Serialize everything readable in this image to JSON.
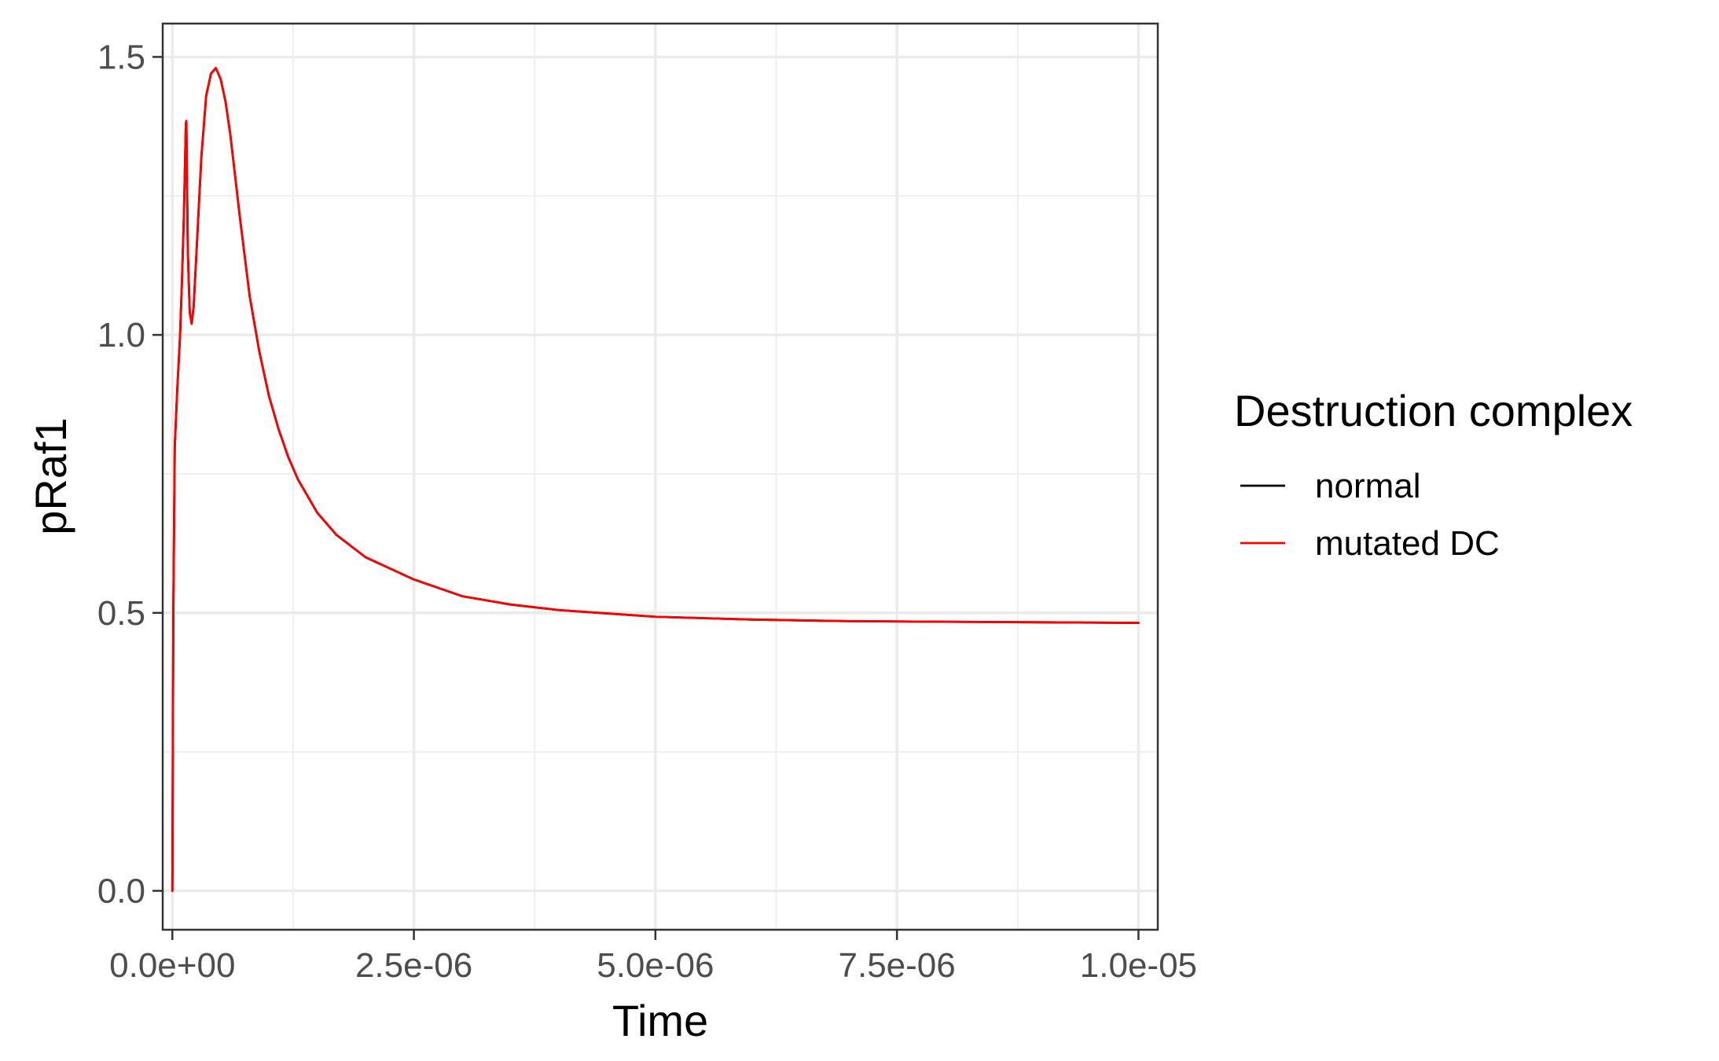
{
  "chart_data": {
    "type": "line",
    "title": "",
    "xlabel": "Time",
    "ylabel": "pRaf1",
    "xlim": [
      -1e-07,
      1.02e-05
    ],
    "ylim": [
      -0.07,
      1.56
    ],
    "x_ticks": [
      0,
      2.5e-06,
      5e-06,
      7.5e-06,
      1e-05
    ],
    "x_tick_labels": [
      "0.0e+00",
      "2.5e-06",
      "5.0e-06",
      "7.5e-06",
      "1.0e-05"
    ],
    "y_ticks": [
      0,
      0.5,
      1.0,
      1.5
    ],
    "y_tick_labels": [
      "0.0",
      "0.5",
      "1.0",
      "1.5"
    ],
    "grid": true,
    "legend": {
      "title": "Destruction complex",
      "position": "right",
      "entries": [
        {
          "label": "normal",
          "color": "#000000"
        },
        {
          "label": "mutated DC",
          "color": "#ff0000"
        }
      ]
    },
    "series": [
      {
        "name": "normal",
        "color": "#000000",
        "x": [
          0,
          1e-08,
          2.5e-08,
          5e-08,
          8e-08,
          1e-07,
          1.2e-07,
          1.4e-07,
          1.45e-07,
          1.5e-07,
          1.6e-07,
          1.8e-07,
          2e-07,
          2.2e-07,
          2.5e-07,
          3e-07,
          3.5e-07,
          4e-07,
          4.5e-07,
          5e-07,
          5.5e-07,
          6e-07,
          7e-07,
          8e-07,
          9e-07,
          1e-06,
          1.1e-06,
          1.2e-06,
          1.3e-06,
          1.5e-06,
          1.7e-06,
          2e-06,
          2.5e-06,
          3e-06,
          3.5e-06,
          4e-06,
          5e-06,
          6e-06,
          7e-06,
          8e-06,
          9e-06,
          1e-05
        ],
        "y": [
          0,
          0.5,
          0.8,
          0.9,
          1.0,
          1.1,
          1.22,
          1.38,
          1.385,
          1.3,
          1.15,
          1.04,
          1.02,
          1.05,
          1.15,
          1.32,
          1.43,
          1.47,
          1.48,
          1.46,
          1.42,
          1.36,
          1.21,
          1.07,
          0.97,
          0.89,
          0.83,
          0.78,
          0.74,
          0.68,
          0.64,
          0.6,
          0.56,
          0.53,
          0.515,
          0.505,
          0.493,
          0.488,
          0.485,
          0.484,
          0.483,
          0.482
        ]
      },
      {
        "name": "mutated DC",
        "color": "#ff0000",
        "x": [
          0,
          1e-08,
          2.5e-08,
          5e-08,
          8e-08,
          1e-07,
          1.2e-07,
          1.4e-07,
          1.45e-07,
          1.5e-07,
          1.6e-07,
          1.8e-07,
          2e-07,
          2.2e-07,
          2.5e-07,
          3e-07,
          3.5e-07,
          4e-07,
          4.5e-07,
          5e-07,
          5.5e-07,
          6e-07,
          7e-07,
          8e-07,
          9e-07,
          1e-06,
          1.1e-06,
          1.2e-06,
          1.3e-06,
          1.5e-06,
          1.7e-06,
          2e-06,
          2.5e-06,
          3e-06,
          3.5e-06,
          4e-06,
          5e-06,
          6e-06,
          7e-06,
          8e-06,
          9e-06,
          1e-05
        ],
        "y": [
          0,
          0.5,
          0.8,
          0.9,
          1.0,
          1.1,
          1.22,
          1.38,
          1.385,
          1.3,
          1.15,
          1.04,
          1.02,
          1.05,
          1.15,
          1.32,
          1.43,
          1.47,
          1.48,
          1.46,
          1.42,
          1.36,
          1.21,
          1.07,
          0.97,
          0.89,
          0.83,
          0.78,
          0.74,
          0.68,
          0.64,
          0.6,
          0.56,
          0.53,
          0.515,
          0.505,
          0.493,
          0.488,
          0.485,
          0.484,
          0.483,
          0.482
        ]
      }
    ]
  }
}
